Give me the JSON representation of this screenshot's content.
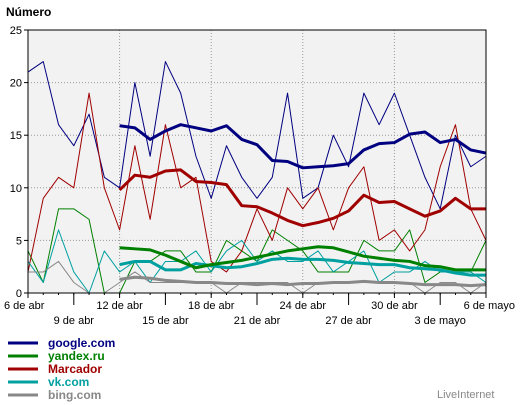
{
  "chart_data": {
    "type": "line",
    "ylabel": "Número",
    "ylim": [
      0,
      25
    ],
    "yticks": [
      0,
      5,
      10,
      15,
      20,
      25
    ],
    "x_days": [
      "6 abr",
      "7 abr",
      "8 abr",
      "9 abr",
      "10 abr",
      "11 abr",
      "12 abr",
      "13 abr",
      "14 abr",
      "15 abr",
      "16 abr",
      "17 abr",
      "18 abr",
      "19 abr",
      "20 abr",
      "21 abr",
      "22 abr",
      "23 abr",
      "24 abr",
      "25 abr",
      "26 abr",
      "27 abr",
      "28 abr",
      "29 abr",
      "30 abr",
      "1 mayo",
      "2 mayo",
      "3 mayo",
      "4 mayo",
      "5 mayo",
      "6 mayo"
    ],
    "xticks_top": [
      {
        "day": "6 abr",
        "label": "6 de abr"
      },
      {
        "day": "12 abr",
        "label": "12 de abr"
      },
      {
        "day": "18 abr",
        "label": "18 de abr"
      },
      {
        "day": "24 abr",
        "label": "24 de abr"
      },
      {
        "day": "30 abr",
        "label": "30 de abr"
      },
      {
        "day": "6 mayo",
        "label": "6 de mayo"
      }
    ],
    "xticks_bottom": [
      {
        "day": "9 abr",
        "label": "9 de abr"
      },
      {
        "day": "15 abr",
        "label": "15 de abr"
      },
      {
        "day": "21 abr",
        "label": "21 de abr"
      },
      {
        "day": "27 abr",
        "label": "27 de abr"
      },
      {
        "day": "3 mayo",
        "label": "3 de mayo"
      }
    ],
    "grid": true,
    "series": [
      {
        "name": "google.com",
        "color": "#000080",
        "daily": [
          21,
          22,
          16,
          14,
          17,
          11,
          10,
          20,
          13,
          22,
          19,
          13,
          9,
          14,
          11,
          9,
          11,
          19,
          9,
          10,
          15,
          12,
          19,
          16,
          19,
          15,
          11,
          8,
          15,
          12,
          13
        ],
        "avg_start": 6,
        "avg": [
          15.9,
          15.7,
          14.6,
          15.4,
          16.0,
          15.7,
          15.4,
          15.9,
          14.6,
          14.1,
          12.6,
          12.5,
          11.9,
          12.0,
          12.1,
          12.3,
          13.6,
          14.2,
          14.3,
          15.1,
          15.3,
          14.3,
          14.6,
          13.6,
          13.3
        ]
      },
      {
        "name": "yandex.ru",
        "color": "#008000",
        "daily": [
          4,
          1,
          8,
          8,
          7,
          0,
          0,
          3,
          3,
          4,
          4,
          2,
          2,
          5,
          4,
          3,
          6,
          5,
          4,
          2,
          2,
          2,
          5,
          4,
          4,
          6,
          1,
          2,
          2,
          2,
          5
        ],
        "avg_start": 6,
        "avg": [
          4.3,
          4.2,
          4.1,
          3.6,
          3.0,
          2.4,
          2.7,
          2.9,
          3.1,
          3.4,
          3.7,
          4.0,
          4.2,
          4.4,
          4.3,
          3.9,
          3.5,
          3.3,
          3.1,
          3.0,
          2.6,
          2.5,
          2.2,
          2.2,
          2.2
        ]
      },
      {
        "name": "Marcador",
        "color": "#a00000",
        "daily": [
          2,
          9,
          11,
          10,
          19,
          10,
          6,
          14,
          7,
          16,
          10,
          11,
          3,
          2,
          4,
          8,
          5,
          10,
          8,
          10,
          6,
          10,
          12,
          5,
          6,
          4,
          6,
          12,
          16,
          8,
          5
        ],
        "avg_start": 6,
        "avg": [
          9.8,
          11.2,
          11.0,
          11.6,
          11.7,
          10.6,
          10.5,
          10.3,
          8.3,
          8.2,
          7.6,
          6.9,
          6.4,
          6.7,
          7.1,
          7.8,
          9.3,
          8.6,
          8.7,
          8.0,
          7.3,
          7.8,
          9.0,
          8.0,
          8.0
        ]
      },
      {
        "name": "vk.com",
        "color": "#00a0a0",
        "daily": [
          3,
          1,
          6,
          2,
          0,
          4,
          2,
          3,
          1,
          3,
          3,
          4,
          2,
          4,
          5,
          3,
          4,
          3,
          3,
          4,
          2,
          3,
          4,
          1,
          2,
          2,
          3,
          2,
          2,
          2,
          1
        ],
        "avg_start": 6,
        "avg": [
          2.7,
          3.0,
          3.0,
          2.2,
          2.2,
          2.8,
          2.6,
          2.4,
          2.5,
          2.8,
          3.2,
          3.3,
          3.2,
          3.2,
          3.1,
          2.9,
          2.8,
          2.7,
          2.7,
          2.4,
          2.3,
          2.2,
          1.9,
          1.7,
          1.7
        ]
      },
      {
        "name": "bing.com",
        "color": "#888888",
        "daily": [
          2,
          2,
          3,
          1,
          0,
          0,
          1,
          2,
          1,
          1,
          1,
          1,
          1,
          0,
          1,
          1,
          1,
          1,
          0,
          1,
          1,
          1,
          1,
          1,
          1,
          1,
          0,
          1,
          1,
          0,
          1
        ],
        "avg_start": 6,
        "avg": [
          1.3,
          1.5,
          1.4,
          1.2,
          1.1,
          1.0,
          1.0,
          0.9,
          0.9,
          0.8,
          0.9,
          0.8,
          0.9,
          0.9,
          1.0,
          1.0,
          1.1,
          1.0,
          1.0,
          0.9,
          0.8,
          0.8,
          0.8,
          0.7,
          0.8
        ]
      }
    ]
  },
  "legend": [
    {
      "label": "google.com",
      "color": "#000080"
    },
    {
      "label": "yandex.ru",
      "color": "#008000"
    },
    {
      "label": "Marcador",
      "color": "#a00000"
    },
    {
      "label": "vk.com",
      "color": "#00a0a0"
    },
    {
      "label": "bing.com",
      "color": "#888888"
    }
  ],
  "credit": "LiveInternet"
}
